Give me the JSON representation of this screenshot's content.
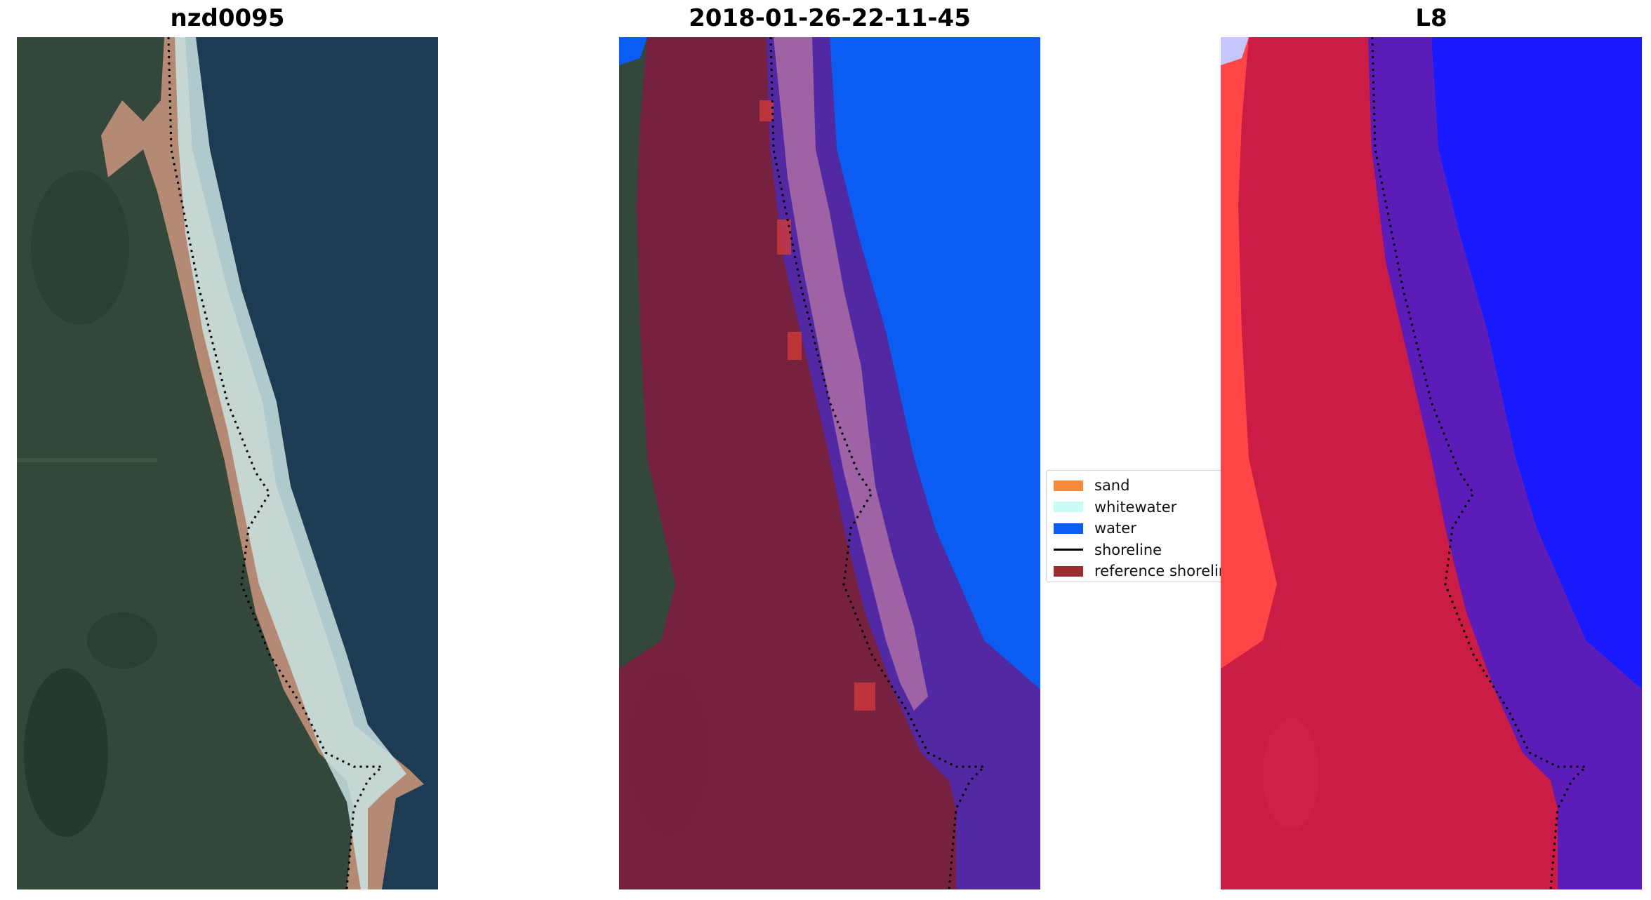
{
  "panels": [
    {
      "title": "nzd0095",
      "kind": "rgb"
    },
    {
      "title": "2018-01-26-22-11-45",
      "kind": "classified"
    },
    {
      "title": "L8",
      "kind": "index"
    }
  ],
  "legend": {
    "items": [
      {
        "label": "sand",
        "color": "#f68b3a",
        "kind": "swatch"
      },
      {
        "label": "whitewater",
        "color": "#c9fbf4",
        "kind": "swatch"
      },
      {
        "label": "water",
        "color": "#0a5cf2",
        "kind": "swatch"
      },
      {
        "label": "shoreline",
        "color": "#000000",
        "kind": "line"
      },
      {
        "label": "reference shoreline",
        "color": "#9a2d2d",
        "kind": "swatch"
      }
    ]
  },
  "colors": {
    "land_green": "#33473a",
    "dark_water": "#1d3b52",
    "beach": "#b48a75",
    "buffer_red": "#7c1e40",
    "buffer_purple": "#5228a3",
    "water_blue": "#0a5cf2",
    "index_red": "#ff4545",
    "index_crimson": "#c81a46",
    "index_purple": "#5c1cb8",
    "index_blue": "#1a1aff"
  }
}
